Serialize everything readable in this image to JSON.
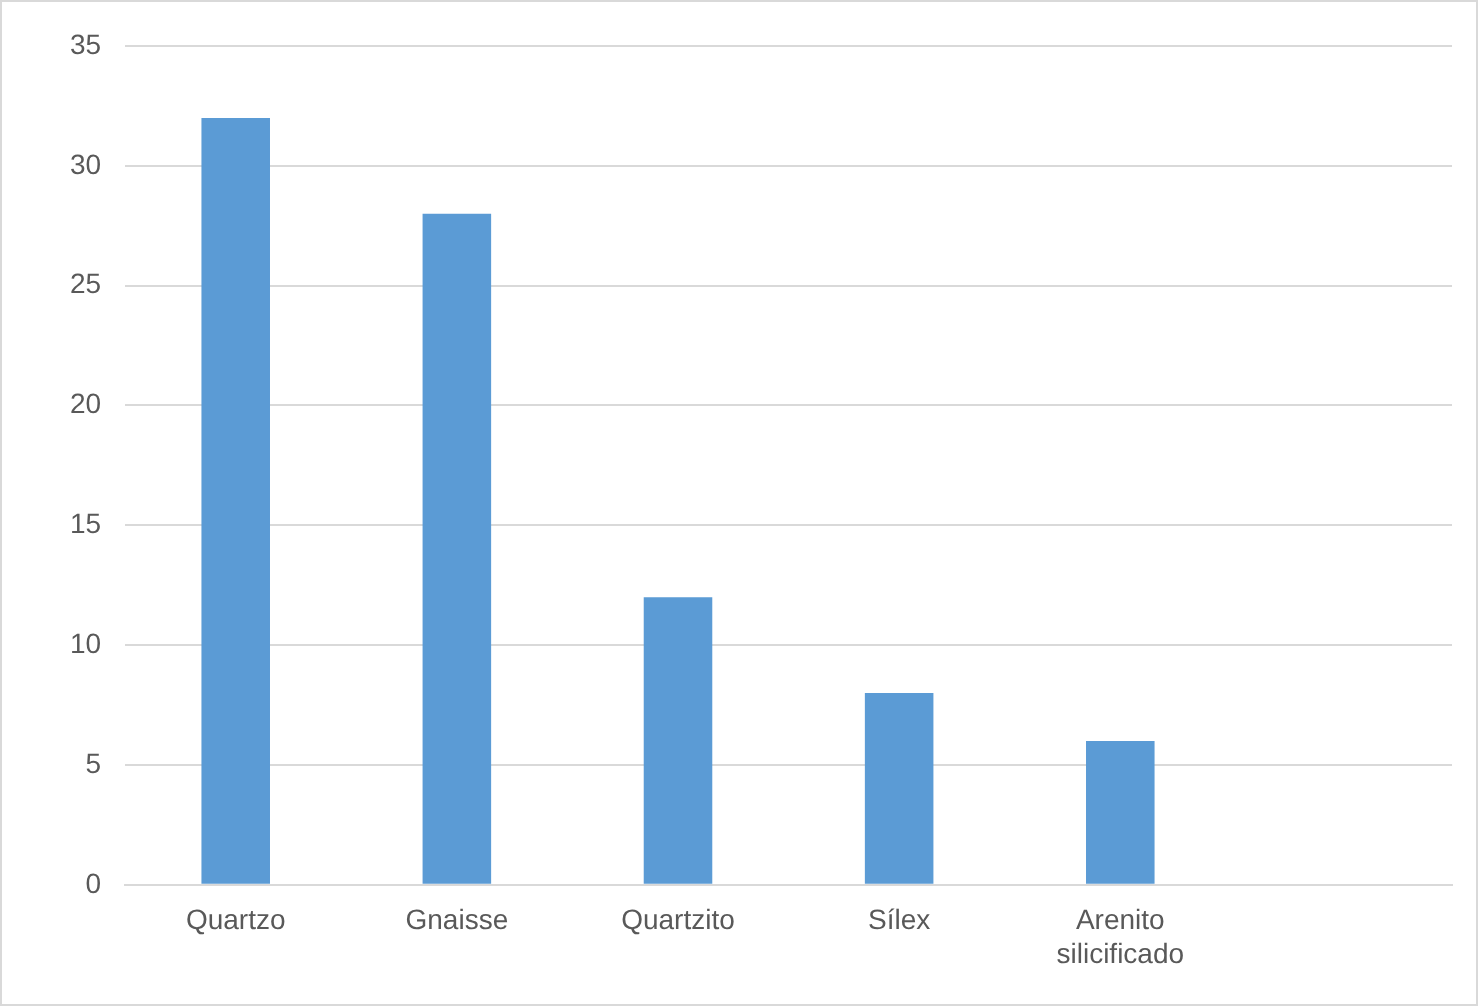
{
  "chart_data": {
    "type": "bar",
    "categories": [
      "Quartzo",
      "Gnaisse",
      "Quartzito",
      "Sílex",
      "Arenito silicificado",
      null
    ],
    "values": [
      32,
      28,
      12,
      8,
      6,
      null
    ],
    "color": "#5b9bd5",
    "ylim": [
      0,
      35
    ],
    "yticks": [
      0,
      5,
      10,
      15,
      20,
      25,
      30,
      35
    ],
    "grid": "y",
    "legend": false
  }
}
